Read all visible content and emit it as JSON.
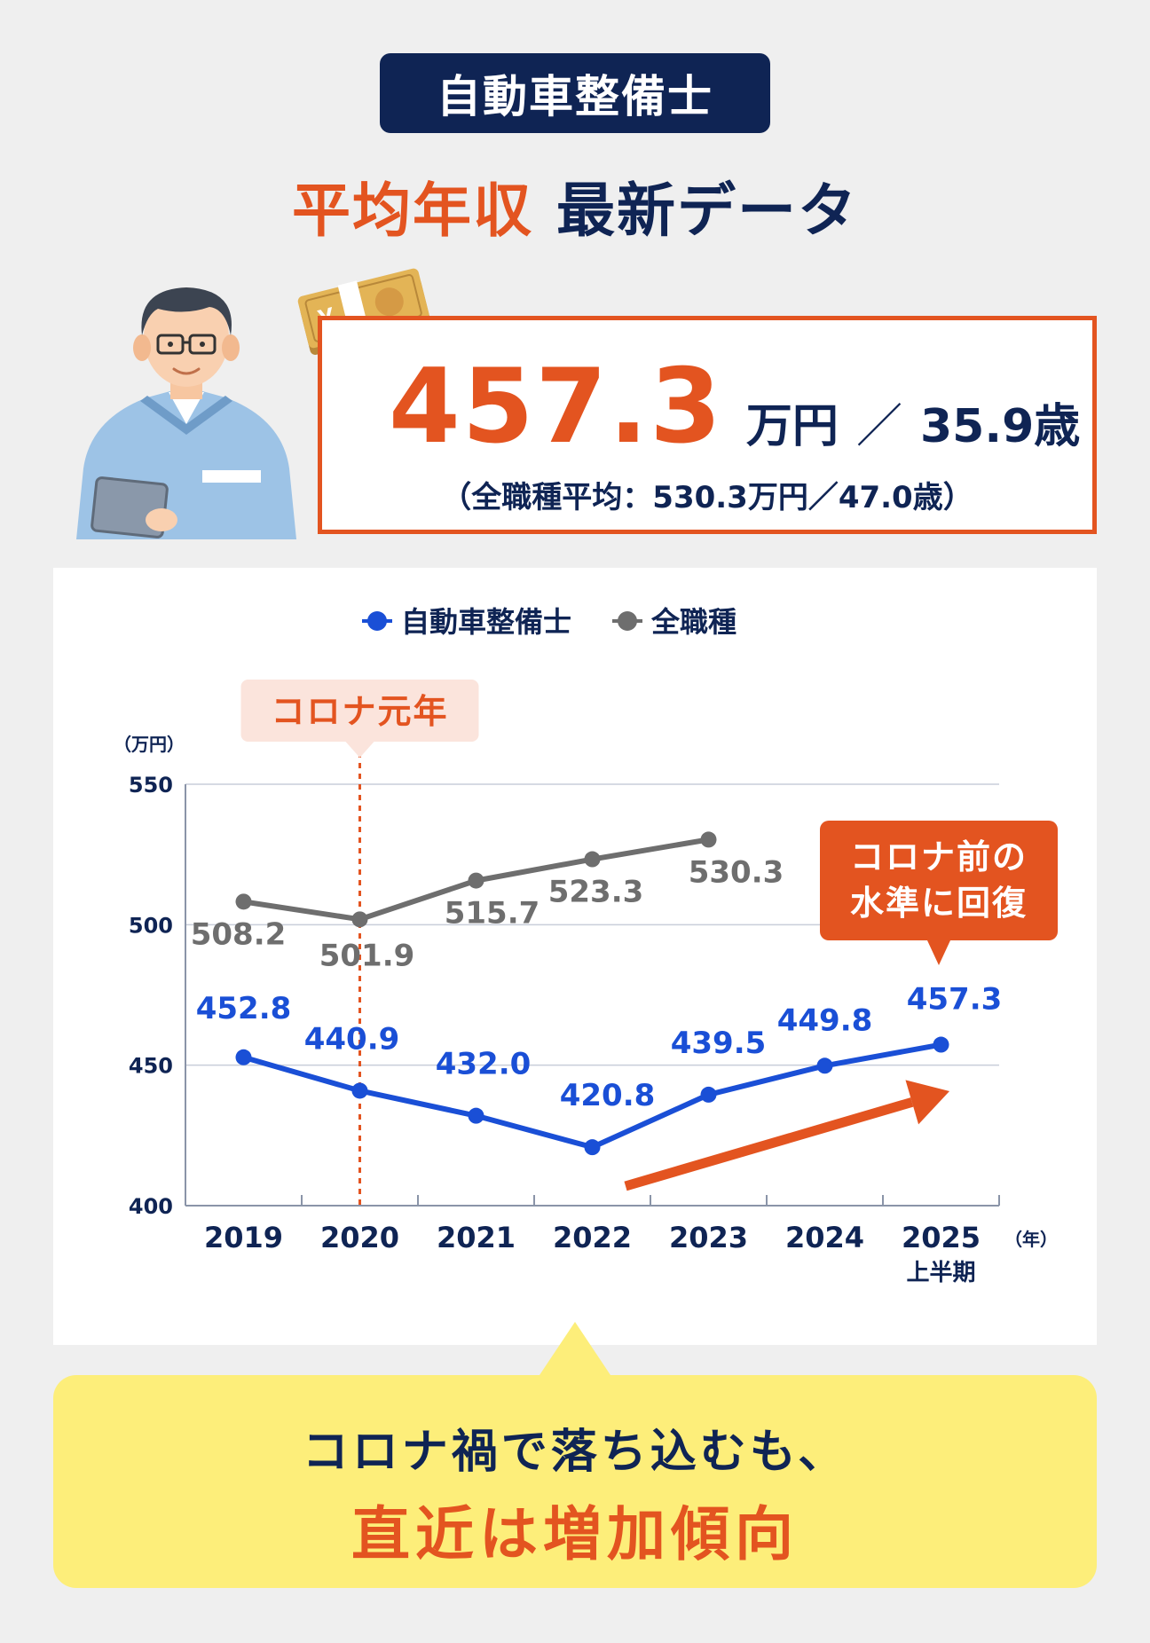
{
  "header": {
    "tag": "自動車整備士",
    "headline_accent": "平均年収",
    "headline_rest": "最新データ"
  },
  "stat": {
    "value": "457.3",
    "unit": "万円",
    "slash": "／",
    "age": "35.9歳",
    "comparison": "（全職種平均：530.3万円／47.0歳）"
  },
  "money_icon_symbol": "¥",
  "chart_data": {
    "type": "line",
    "categories": [
      "2019",
      "2020",
      "2021",
      "2022",
      "2023",
      "2024",
      "2025"
    ],
    "category_sublabels": [
      "",
      "",
      "",
      "",
      "",
      "",
      "上半期"
    ],
    "x_unit": "（年）",
    "y_unit": "（万円）",
    "ylim": [
      400,
      550
    ],
    "yticks": [
      400,
      450,
      500,
      550
    ],
    "grid": true,
    "legend_position": "top-center",
    "series": [
      {
        "name": "自動車整備士",
        "color": "#1a4fd6",
        "values": [
          452.8,
          440.9,
          432.0,
          420.8,
          439.5,
          449.8,
          457.3
        ]
      },
      {
        "name": "全職種",
        "color": "#6e6e6e",
        "values": [
          508.2,
          501.9,
          515.7,
          523.3,
          530.3,
          null,
          null
        ]
      }
    ],
    "annotations": {
      "corona_label": "コロナ元年",
      "corona_category": "2020",
      "recovery_label_line1": "コロナ前の",
      "recovery_label_line2": "水準に回復",
      "accent_color": "#e35420"
    }
  },
  "callout": {
    "line1": "コロナ禍で落ち込むも、",
    "line2": "直近は増加傾向"
  }
}
